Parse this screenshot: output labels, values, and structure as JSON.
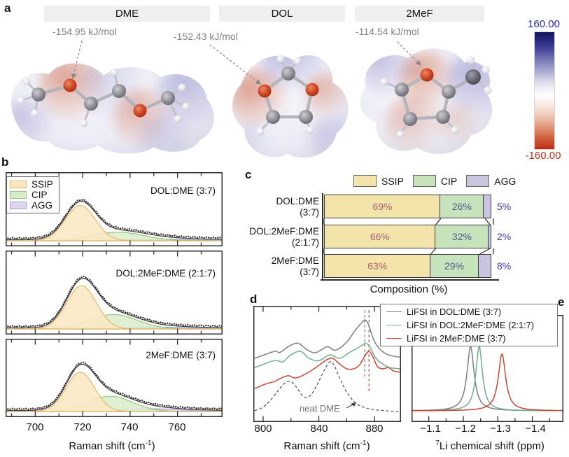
{
  "panels": {
    "a": "a",
    "b": "b",
    "c": "c",
    "d": "d",
    "e": "e"
  },
  "panel_a": {
    "headers": [
      "DME",
      "DOL",
      "2MeF"
    ],
    "energies": [
      "-154.95 kJ/mol",
      "-152.43 kJ/mol",
      "-114.54 kJ/mol"
    ],
    "colorbar": {
      "max_label": "160.00",
      "min_label": "-160.00"
    }
  },
  "panel_b": {
    "legend": [
      "SSIP",
      "CIP",
      "AGG"
    ],
    "axis": {
      "ticks": [
        "700",
        "720",
        "740",
        "760"
      ],
      "label_pre": "Raman shift (cm",
      "label_sup": "-1",
      "label_post": ")"
    }
  },
  "panel_c": {
    "legend": [
      "SSIP",
      "CIP",
      "AGG"
    ],
    "rows": [
      {
        "line1": "DOL:DME",
        "line2": "(3:7)"
      },
      {
        "line1": "DOL:2MeF:DME",
        "line2": "(2:1:7)"
      },
      {
        "line1": "2MeF:DME",
        "line2": "(3:7)"
      }
    ],
    "axis_label": "Composition (%)"
  },
  "panel_d": {
    "legend": [
      "LiFSI in DOL:DME (3:7)",
      "LiFSI in DOL:2MeF:DME (2:1:7)",
      "LiFSI in 2MeF:DME (3:7)"
    ],
    "ticks": [
      "800",
      "840",
      "880"
    ],
    "axis": {
      "label_pre": "Raman shift (cm",
      "label_sup": "-1",
      "label_post": ")"
    },
    "annotation": "neat DME"
  },
  "panel_e": {
    "ticks": [
      "−1.1",
      "−1.2",
      "−1.3",
      "−1.4"
    ],
    "axis": {
      "label_sup": "7",
      "label_post": "Li chemical shift (ppm)"
    }
  },
  "colors": {
    "ssip_fill_bar": "#f4e3ab",
    "cip_fill_bar": "#c6e3bb",
    "agg_fill_bar": "#cbc4e1",
    "ssip_fill": "#fbe7c1",
    "cip_fill": "#d8ecca",
    "agg_fill": "#dcd6ee",
    "ssip_edge": "#e9b469",
    "cip_edge": "#96c77f",
    "agg_edge": "#a9a0d8",
    "pct_ssip": "#a6646c",
    "pct_cip": "#4e5a8e",
    "pct_agg": "#4040a8",
    "line_gray": "#7f7f7f",
    "line_green": "#6fae8f",
    "line_red": "#cb4632",
    "line_gray_e": "#787b8c",
    "line_dashed": "#3c3c50",
    "fit_line": "#3f3f3f",
    "dots": "#1c1c1c",
    "frame": "#2e2e2e",
    "cbar_top": "#12125f",
    "cbar_bottom": "#bf2c12",
    "annotation_gray": "#8a8a8a"
  },
  "chart_data": [
    {
      "panel": "b",
      "type": "area",
      "title": "Fitted Raman spectra of solvation species",
      "xlabel": "Raman shift (cm-1)",
      "x_ticks": [
        700,
        720,
        740,
        760
      ],
      "x_minor_ticks": [
        690,
        710,
        730,
        750,
        770
      ],
      "x_range": [
        687.5,
        779
      ],
      "legend": [
        "SSIP",
        "CIP",
        "AGG"
      ],
      "subplots": [
        {
          "label": "DOL:DME (3:7)",
          "components": [
            {
              "name": "SSIP",
              "center": 719,
              "sigma": 6.3,
              "height": 0.7
            },
            {
              "name": "CIP",
              "center": 735,
              "sigma": 11,
              "height": 0.17
            },
            {
              "name": "AGG",
              "center": 754,
              "sigma": 13,
              "height": 0.03
            }
          ]
        },
        {
          "label": "DOL:2MeF:DME (2:1:7)",
          "components": [
            {
              "name": "SSIP",
              "center": 719.5,
              "sigma": 6.3,
              "height": 0.72
            },
            {
              "name": "CIP",
              "center": 733,
              "sigma": 10,
              "height": 0.24
            },
            {
              "name": "AGG",
              "center": 752,
              "sigma": 13,
              "height": 0.03
            }
          ]
        },
        {
          "label": "2MeF:DME (3:7)",
          "components": [
            {
              "name": "SSIP",
              "center": 719,
              "sigma": 6.0,
              "height": 0.72
            },
            {
              "name": "CIP",
              "center": 731.5,
              "sigma": 9.5,
              "height": 0.28
            },
            {
              "name": "AGG",
              "center": 750,
              "sigma": 12,
              "height": 0.05
            }
          ]
        }
      ]
    },
    {
      "panel": "c",
      "type": "bar",
      "title": "Solvation species composition",
      "xlabel": "Composition (%)",
      "xlim": [
        0,
        100
      ],
      "categories": [
        "DOL:DME (3:7)",
        "DOL:2MeF:DME (2:1:7)",
        "2MeF:DME (3:7)"
      ],
      "series": [
        {
          "name": "SSIP",
          "values": [
            69,
            66,
            63
          ]
        },
        {
          "name": "CIP",
          "values": [
            26,
            32,
            29
          ]
        },
        {
          "name": "AGG",
          "values": [
            5,
            2,
            8
          ]
        }
      ]
    },
    {
      "panel": "d",
      "type": "line",
      "title": "Raman spectra of LiFSI electrolytes",
      "xlabel": "Raman shift (cm-1)",
      "x_ticks": [
        800,
        840,
        880
      ],
      "x_minor_ticks": [
        820,
        860
      ],
      "x_range": [
        793,
        899
      ],
      "dashed_guides": [
        {
          "x": 873,
          "color_key": "line_gray"
        },
        {
          "x": 876,
          "color_key": "line_red"
        }
      ],
      "series": [
        {
          "name": "neat DME",
          "style": "dashed",
          "color_key": "line_dashed",
          "x": [
            794,
            800,
            806,
            812,
            816,
            820,
            824,
            829,
            834,
            839,
            844,
            848,
            851,
            855,
            860,
            866,
            872,
            879,
            887,
            899
          ],
          "y": [
            0.08,
            0.11,
            0.18,
            0.27,
            0.32,
            0.33,
            0.28,
            0.2,
            0.21,
            0.31,
            0.43,
            0.5,
            0.47,
            0.36,
            0.24,
            0.15,
            0.11,
            0.09,
            0.08,
            0.07
          ]
        },
        {
          "name": "LiFSI in 2MeF:DME (3:7)",
          "style": "solid",
          "color_key": "line_red",
          "x": [
            794,
            802,
            808,
            813,
            818,
            823,
            828,
            834,
            840,
            846,
            850,
            855,
            860,
            865,
            869,
            873,
            876,
            879,
            882,
            886,
            890,
            894,
            899
          ],
          "y": [
            0.27,
            0.31,
            0.33,
            0.36,
            0.38,
            0.36,
            0.38,
            0.42,
            0.47,
            0.52,
            0.53,
            0.48,
            0.44,
            0.44,
            0.47,
            0.55,
            0.59,
            0.54,
            0.46,
            0.44,
            0.45,
            0.42,
            0.41
          ]
        },
        {
          "name": "LiFSI in DOL:2MeF:DME (2:1:7)",
          "style": "solid",
          "color_key": "line_green",
          "x": [
            794,
            808,
            814,
            820,
            827,
            833,
            840,
            848,
            855,
            862,
            868,
            872,
            874,
            877,
            881,
            886,
            891,
            899
          ],
          "y": [
            0.45,
            0.51,
            0.5,
            0.56,
            0.59,
            0.53,
            0.51,
            0.56,
            0.53,
            0.58,
            0.62,
            0.65,
            0.66,
            0.62,
            0.53,
            0.48,
            0.45,
            0.44
          ]
        },
        {
          "name": "LiFSI in DOL:DME (3:7)",
          "style": "solid",
          "color_key": "line_gray",
          "x": [
            794,
            808,
            812,
            818,
            825,
            832,
            838,
            846,
            852,
            860,
            866,
            871,
            873.5,
            876,
            879,
            883,
            888,
            893,
            899
          ],
          "y": [
            0.53,
            0.59,
            0.58,
            0.63,
            0.66,
            0.6,
            0.58,
            0.63,
            0.6,
            0.67,
            0.77,
            0.84,
            0.86,
            0.81,
            0.7,
            0.62,
            0.57,
            0.55,
            0.54
          ]
        }
      ]
    },
    {
      "panel": "e",
      "type": "line",
      "title": "7Li NMR chemical shift",
      "xlabel": "7Li chemical shift (ppm)",
      "x_ticks": [
        -1.1,
        -1.2,
        -1.3,
        -1.4
      ],
      "x_minor_ticks": [
        -1.05,
        -1.15,
        -1.25,
        -1.35,
        -1.45
      ],
      "x_range": [
        -1.05,
        -1.49
      ],
      "peaks": [
        {
          "name": "LiFSI in DOL:DME (3:7)",
          "color_key": "line_gray_e",
          "center": -1.221,
          "height": 0.6,
          "hwhm": 0.0125
        },
        {
          "name": "LiFSI in DOL:2MeF:DME (2:1:7)",
          "color_key": "line_green",
          "center": -1.246,
          "height": 0.6,
          "hwhm": 0.0115
        },
        {
          "name": "LiFSI in 2MeF:DME (3:7)",
          "color_key": "line_red",
          "center": -1.312,
          "height": 0.53,
          "hwhm": 0.013
        }
      ]
    }
  ]
}
